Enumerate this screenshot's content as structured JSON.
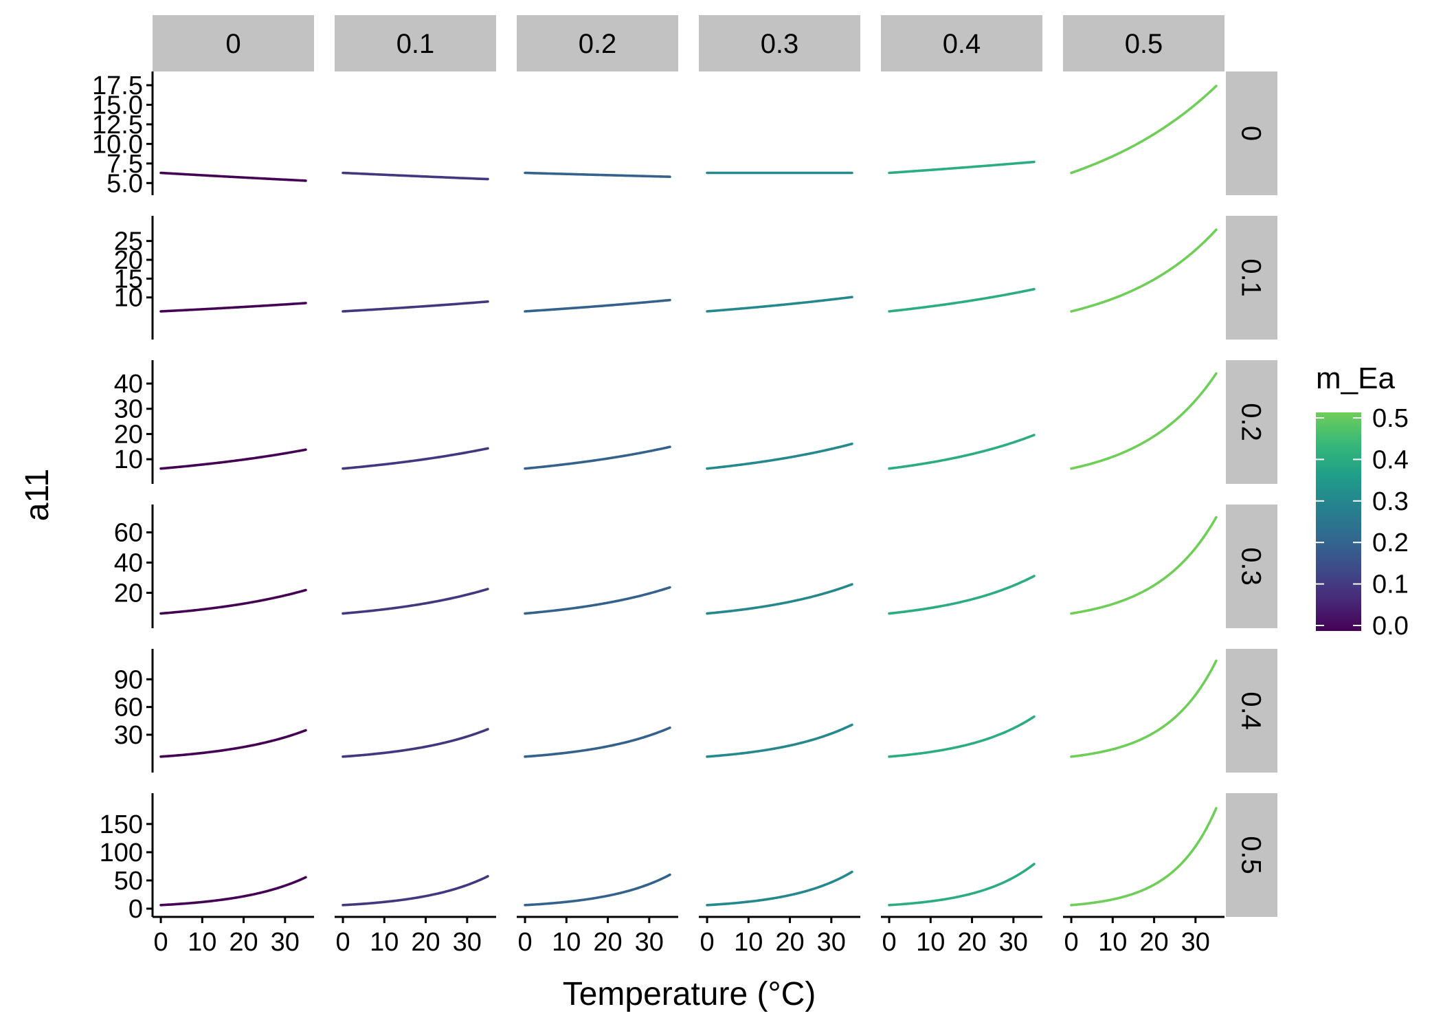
{
  "chart_data": {
    "type": "line",
    "xlabel": "Temperature (°C)",
    "ylabel": "a11",
    "x_range": [
      0,
      35
    ],
    "xlim": [
      -2,
      37
    ],
    "x_ticks": [
      0,
      10,
      20,
      30
    ],
    "x_tick_labels": [
      "0",
      "10",
      "20",
      "30"
    ],
    "grid": false,
    "col_facets": [
      {
        "label": "0",
        "value": 0
      },
      {
        "label": "0.1",
        "value": 0.1
      },
      {
        "label": "0.2",
        "value": 0.2
      },
      {
        "label": "0.3",
        "value": 0.3
      },
      {
        "label": "0.4",
        "value": 0.4
      },
      {
        "label": "0.5",
        "value": 0.5
      }
    ],
    "row_facets": [
      {
        "label": "0",
        "value": 0,
        "ylim": [
          4.5,
          18.2
        ],
        "y_ticks": [
          5,
          7.5,
          10,
          12.5,
          15,
          17.5
        ],
        "y_tick_labels": [
          "5.0",
          "7.5",
          "10.0",
          "12.5",
          "15.0",
          "17.5"
        ]
      },
      {
        "label": "0.1",
        "value": 0.1,
        "ylim": [
          1,
          29.5
        ],
        "y_ticks": [
          10,
          15,
          20,
          25
        ],
        "y_tick_labels": [
          "10",
          "15",
          "20",
          "25"
        ]
      },
      {
        "label": "0.2",
        "value": 0.2,
        "ylim": [
          3.5,
          46
        ],
        "y_ticks": [
          10,
          20,
          30,
          40
        ],
        "y_tick_labels": [
          "10",
          "20",
          "30",
          "40"
        ]
      },
      {
        "label": "0.3",
        "value": 0.3,
        "ylim": [
          2,
          73
        ],
        "y_ticks": [
          20,
          40,
          60
        ],
        "y_tick_labels": [
          "20",
          "40",
          "60"
        ]
      },
      {
        "label": "0.4",
        "value": 0.4,
        "ylim": [
          -2,
          114
        ],
        "y_ticks": [
          30,
          60,
          90
        ],
        "y_tick_labels": [
          "30",
          "60",
          "90"
        ]
      },
      {
        "label": "0.5",
        "value": 0.5,
        "ylim": [
          0,
          190
        ],
        "y_ticks": [
          0,
          50,
          100,
          150
        ],
        "y_tick_labels": [
          "0",
          "50",
          "100",
          "150"
        ]
      }
    ],
    "series_note": "Each panel shows one curve a11 vs Temperature for the column m_Ea (color) and the row facet; end values listed as [start at 0°C, end at ~35°C]",
    "panel_endpoints": [
      [
        [
          6.3,
          5.3
        ],
        [
          6.3,
          5.5
        ],
        [
          6.3,
          5.8
        ],
        [
          6.3,
          6.3
        ],
        [
          6.3,
          7.7
        ],
        [
          6.3,
          17.4
        ]
      ],
      [
        [
          6.3,
          8.5
        ],
        [
          6.3,
          8.9
        ],
        [
          6.3,
          9.3
        ],
        [
          6.3,
          10.1
        ],
        [
          6.3,
          12.2
        ],
        [
          6.3,
          28
        ]
      ],
      [
        [
          6.3,
          13.8
        ],
        [
          6.3,
          14.3
        ],
        [
          6.3,
          14.9
        ],
        [
          6.3,
          16.1
        ],
        [
          6.3,
          19.6
        ],
        [
          6.3,
          44
        ]
      ],
      [
        [
          6.3,
          21.8
        ],
        [
          6.3,
          22.5
        ],
        [
          6.3,
          23.6
        ],
        [
          6.3,
          25.6
        ],
        [
          6.3,
          31.1
        ],
        [
          6.3,
          70
        ]
      ],
      [
        [
          6.3,
          34.8
        ],
        [
          6.3,
          36
        ],
        [
          6.3,
          37.6
        ],
        [
          6.3,
          40.8
        ],
        [
          6.3,
          49.6
        ],
        [
          6.3,
          110
        ]
      ],
      [
        [
          6.3,
          55.6
        ],
        [
          6.3,
          57.4
        ],
        [
          6.3,
          60.1
        ],
        [
          6.3,
          65.2
        ],
        [
          6.3,
          79.1
        ],
        [
          6.3,
          178
        ]
      ]
    ],
    "legend": {
      "title": "m_Ea",
      "position": "right",
      "range": [
        0,
        0.5
      ],
      "ticks": [
        0,
        0.1,
        0.2,
        0.3,
        0.4,
        0.5
      ],
      "tick_labels": [
        "0.0",
        "0.1",
        "0.2",
        "0.3",
        "0.4",
        "0.5"
      ],
      "colors": [
        "#440154",
        "#482878",
        "#3e4a89",
        "#31688e",
        "#26828e",
        "#1f9e89",
        "#35b779",
        "#6ece58"
      ]
    }
  }
}
